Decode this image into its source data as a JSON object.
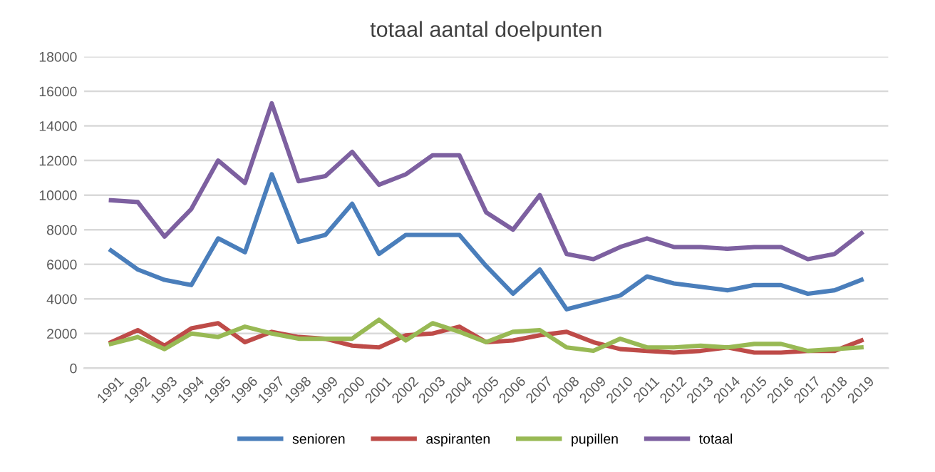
{
  "chart_data": {
    "type": "line",
    "title": "totaal aantal doelpunten",
    "categories": [
      "1991",
      "1992",
      "1993",
      "1994",
      "1995",
      "1996",
      "1997",
      "1998",
      "1999",
      "2000",
      "2001",
      "2002",
      "2003",
      "2004",
      "2005",
      "2006",
      "2007",
      "2008",
      "2009",
      "2010",
      "2011",
      "2012",
      "2013",
      "2014",
      "2015",
      "2016",
      "2017",
      "2018",
      "2019"
    ],
    "series": [
      {
        "name": "senioren",
        "color": "#4a7ebb",
        "values": [
          6800,
          5700,
          5100,
          4800,
          7500,
          6700,
          11200,
          7300,
          7700,
          9500,
          6600,
          7700,
          7700,
          7700,
          5900,
          4300,
          5700,
          3400,
          3800,
          4200,
          5300,
          4900,
          4700,
          4500,
          4800,
          4800,
          4300,
          4500,
          5100
        ]
      },
      {
        "name": "aspiranten",
        "color": "#be4b48",
        "values": [
          1500,
          2200,
          1300,
          2300,
          2600,
          1500,
          2100,
          1800,
          1700,
          1300,
          1200,
          1900,
          2000,
          2400,
          1500,
          1600,
          1900,
          2100,
          1500,
          1100,
          1000,
          900,
          1000,
          1200,
          900,
          900,
          1000,
          1000,
          1600
        ]
      },
      {
        "name": "pupillen",
        "color": "#98b954",
        "values": [
          1400,
          1800,
          1100,
          2000,
          1800,
          2400,
          2000,
          1700,
          1700,
          1700,
          2800,
          1600,
          2600,
          2100,
          1500,
          2100,
          2200,
          1200,
          1000,
          1700,
          1200,
          1200,
          1300,
          1200,
          1400,
          1400,
          1000,
          1100,
          1200
        ]
      },
      {
        "name": "totaal",
        "color": "#7d60a0",
        "values": [
          9700,
          9600,
          7600,
          9200,
          12000,
          10700,
          15300,
          10800,
          11100,
          12500,
          10600,
          11200,
          12300,
          12300,
          9000,
          8000,
          10000,
          6600,
          6300,
          7000,
          7500,
          7000,
          7000,
          6900,
          7000,
          7000,
          6300,
          6600,
          7800
        ]
      }
    ],
    "ylim": [
      0,
      18000
    ],
    "yticks": [
      0,
      2000,
      4000,
      6000,
      8000,
      10000,
      12000,
      14000,
      16000,
      18000
    ],
    "grid": "y",
    "legend": "bottom",
    "marker": "none",
    "line_style": "solid"
  }
}
